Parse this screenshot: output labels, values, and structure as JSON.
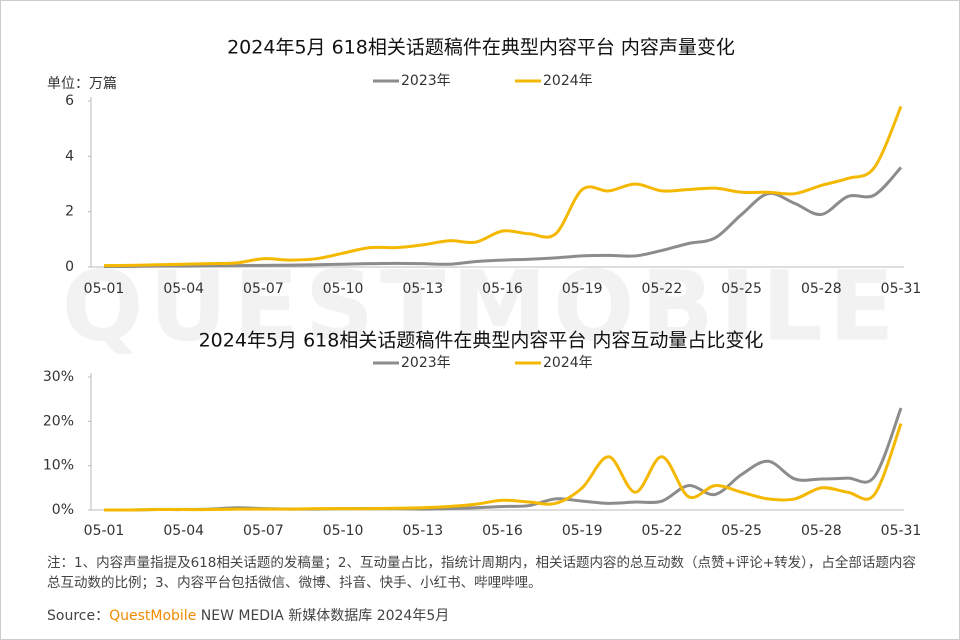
{
  "watermark": "QUESTMOBILE",
  "note": "注：1、内容声量指提及618相关话题的发稿量；2、互动量占比，指统计周期内，相关话题内容的总互动数（点赞+评论+转发），占全部话题内容总互动数的比例；3、内容平台包括微信、微博、抖音、快手、小红书、哔哩哔哩。",
  "source": {
    "label": "Source：",
    "brand": "QuestMobile",
    "text": "NEW MEDIA 新媒体数据库 2024年5月"
  },
  "chart_data": [
    {
      "type": "line",
      "title": "2024年5月 618相关话题稿件在典型内容平台 内容声量变化",
      "y_label": "单位：万篇",
      "categories": [
        "05-01",
        null,
        null,
        "05-04",
        null,
        null,
        "05-07",
        null,
        null,
        "05-10",
        null,
        null,
        "05-13",
        null,
        null,
        "05-16",
        null,
        null,
        "05-19",
        null,
        null,
        "05-22",
        null,
        null,
        "05-25",
        null,
        null,
        "05-28",
        null,
        null,
        "05-31"
      ],
      "series": [
        {
          "name": "2023年",
          "color": "#8c8c8c",
          "values": [
            0.02,
            0.02,
            0.03,
            0.03,
            0.04,
            0.05,
            0.06,
            0.07,
            0.08,
            0.1,
            0.12,
            0.13,
            0.12,
            0.1,
            0.2,
            0.25,
            0.28,
            0.33,
            0.4,
            0.42,
            0.4,
            0.6,
            0.85,
            1.05,
            1.9,
            2.65,
            2.3,
            1.9,
            2.55,
            2.6,
            3.6
          ]
        },
        {
          "name": "2024年",
          "color": "#f5b800",
          "values": [
            0.05,
            0.06,
            0.08,
            0.1,
            0.12,
            0.15,
            0.3,
            0.25,
            0.3,
            0.5,
            0.7,
            0.7,
            0.8,
            0.95,
            0.9,
            1.3,
            1.2,
            1.2,
            2.8,
            2.75,
            3.0,
            2.75,
            2.8,
            2.85,
            2.7,
            2.7,
            2.65,
            2.95,
            3.2,
            3.6,
            5.8
          ]
        }
      ],
      "ylim": [
        0,
        6
      ],
      "yticks": [
        0,
        2,
        4,
        6
      ],
      "legend": "top"
    },
    {
      "type": "line",
      "title": "2024年5月 618相关话题稿件在典型内容平台 内容互动量占比变化",
      "categories": [
        "05-01",
        null,
        null,
        "05-04",
        null,
        null,
        "05-07",
        null,
        null,
        "05-10",
        null,
        null,
        "05-13",
        null,
        null,
        "05-16",
        null,
        null,
        "05-19",
        null,
        null,
        "05-22",
        null,
        null,
        "05-25",
        null,
        null,
        "05-28",
        null,
        null,
        "05-31"
      ],
      "series": [
        {
          "name": "2023年",
          "color": "#8c8c8c",
          "values": [
            0,
            0,
            0.1,
            0.1,
            0.2,
            0.5,
            0.3,
            0.2,
            0.2,
            0.3,
            0.3,
            0.3,
            0.2,
            0.3,
            0.5,
            0.8,
            1.0,
            2.5,
            2.0,
            1.5,
            1.8,
            2.0,
            5.5,
            3.5,
            8,
            11,
            7,
            7,
            7.2,
            7.5,
            23
          ]
        },
        {
          "name": "2024年",
          "color": "#f5b800",
          "values": [
            0,
            0,
            0.1,
            0.1,
            0.1,
            0.2,
            0.2,
            0.2,
            0.3,
            0.3,
            0.3,
            0.4,
            0.5,
            0.8,
            1.3,
            2.2,
            1.8,
            1.5,
            5,
            12,
            4,
            12,
            3,
            5.5,
            4,
            2.5,
            2.5,
            5,
            4,
            3.5,
            19.5
          ]
        }
      ],
      "ylim": [
        0,
        30
      ],
      "yticks": [
        {
          "value": 0,
          "label": "0%"
        },
        {
          "value": 10,
          "label": "10%"
        },
        {
          "value": 20,
          "label": "20%"
        },
        {
          "value": 30,
          "label": "30%"
        }
      ],
      "legend": "top"
    }
  ]
}
